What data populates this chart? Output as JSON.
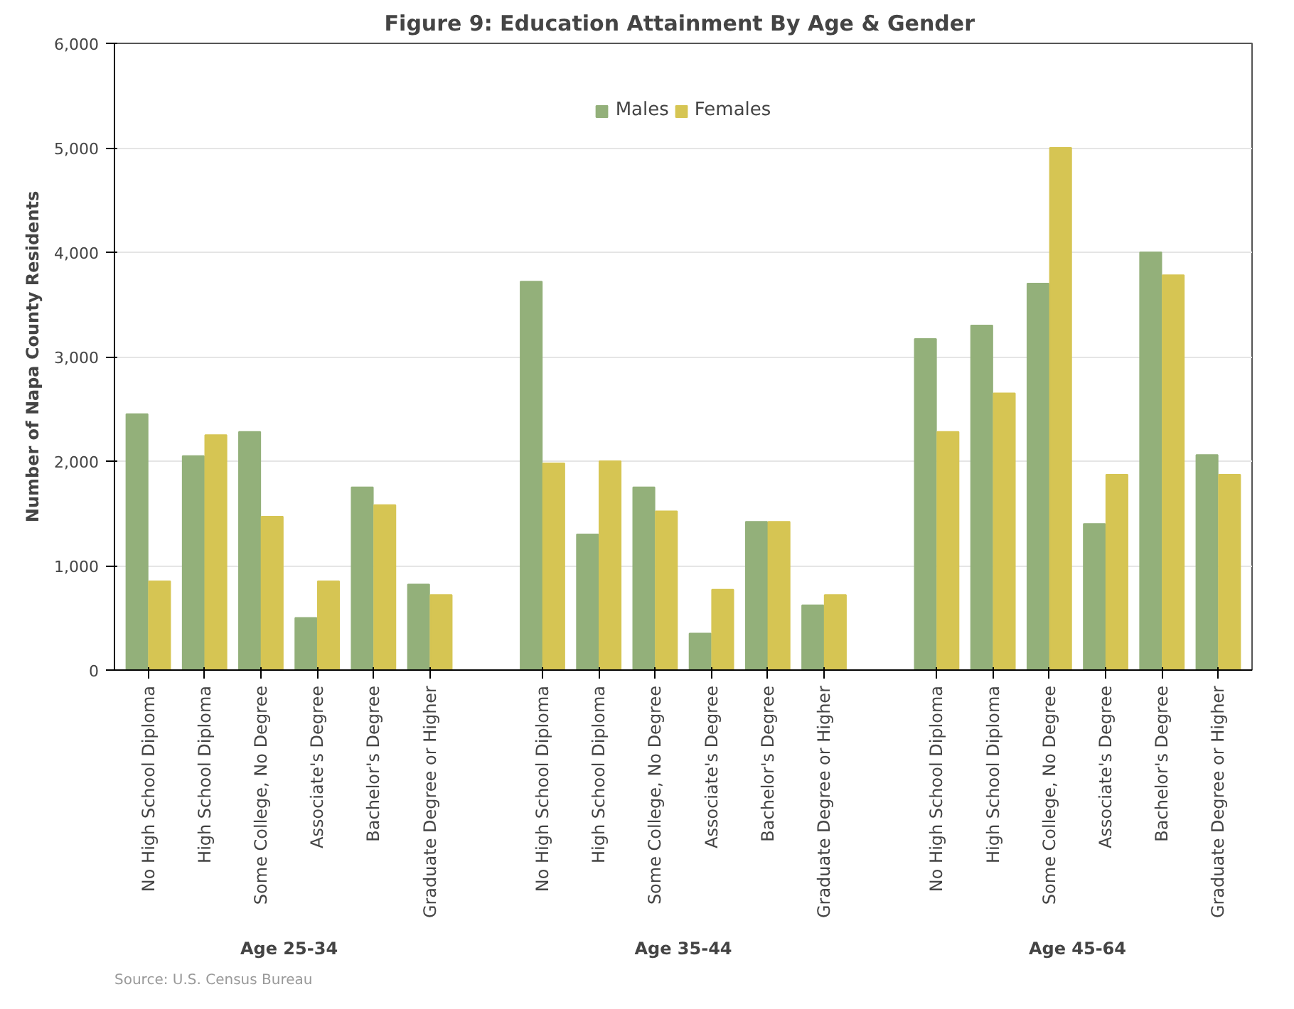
{
  "chart_data": {
    "type": "bar",
    "title": "Figure 9:  Education Attainment By Age & Gender",
    "ylabel": "Number of Napa County Residents",
    "categories": [
      "No High School Diploma",
      "High School Diploma",
      "Some College, No Degree",
      "Associate's Degree",
      "Bachelor's Degree",
      "Graduate Degree or Higher",
      null,
      "No High School Diploma",
      "High School Diploma",
      "Some College, No Degree",
      "Associate's Degree",
      "Bachelor's Degree",
      "Graduate Degree or Higher",
      null,
      "No High School Diploma",
      "High School Diploma",
      "Some College, No Degree",
      "Associate's Degree",
      "Bachelor's Degree",
      "Graduate Degree or Higher"
    ],
    "series": [
      {
        "name": "Males",
        "color": "#93b07a",
        "values": [
          2450,
          2050,
          2280,
          500,
          1750,
          820,
          null,
          3720,
          1300,
          1750,
          350,
          1420,
          620,
          null,
          3170,
          3300,
          3700,
          1400,
          4000,
          2060
        ]
      },
      {
        "name": "Females",
        "color": "#d6c553",
        "values": [
          850,
          2250,
          1470,
          850,
          1580,
          720,
          null,
          1980,
          2000,
          1520,
          770,
          1420,
          720,
          null,
          2280,
          2650,
          5000,
          1870,
          3780,
          1870
        ]
      }
    ],
    "ylim": [
      0,
      6000
    ],
    "yticks": [
      0,
      {
        "value": 1000,
        "label": "1,000"
      },
      {
        "value": 2000,
        "label": "2,000"
      },
      {
        "value": 3000,
        "label": "3,000"
      },
      {
        "value": 4000,
        "label": "4,000"
      },
      {
        "value": 5000,
        "label": "5,000"
      },
      {
        "value": 6000,
        "label": "6,000"
      }
    ],
    "annotations": [
      "Age 25-34",
      "Age 35-44",
      "Age 45-64",
      "Source:  U.S. Census Bureau"
    ],
    "grid": "y",
    "legend": "top"
  }
}
